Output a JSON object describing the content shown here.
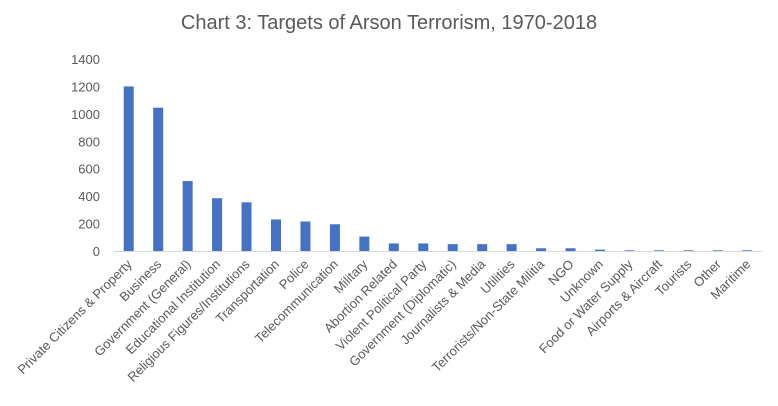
{
  "chart_data": {
    "type": "bar",
    "title": "Chart 3: Targets of Arson Terrorism, 1970-2018",
    "xlabel": "",
    "ylabel": "",
    "ylim": [
      0,
      1400
    ],
    "yticks": [
      0,
      200,
      400,
      600,
      800,
      1000,
      1200,
      1400
    ],
    "grid": false,
    "color": "#4472C4",
    "categories": [
      "Private Citizens & Property",
      "Business",
      "Government (General)",
      "Educational Institution",
      "Religious Figures/Institutions",
      "Transportation",
      "Police",
      "Telecommunication",
      "Military",
      "Abortion Related",
      "Violent Political Party",
      "Government (Diplomatic)",
      "Journalists & Media",
      "Utilities",
      "Terrorists/Non-State Militia",
      "NGO",
      "Unknown",
      "Food or Water Supply",
      "Airports & Aircraft",
      "Tourists",
      "Other",
      "Maritime"
    ],
    "values": [
      1200,
      1045,
      510,
      385,
      355,
      230,
      215,
      195,
      105,
      55,
      55,
      50,
      50,
      50,
      20,
      20,
      10,
      5,
      5,
      5,
      5,
      5
    ]
  }
}
